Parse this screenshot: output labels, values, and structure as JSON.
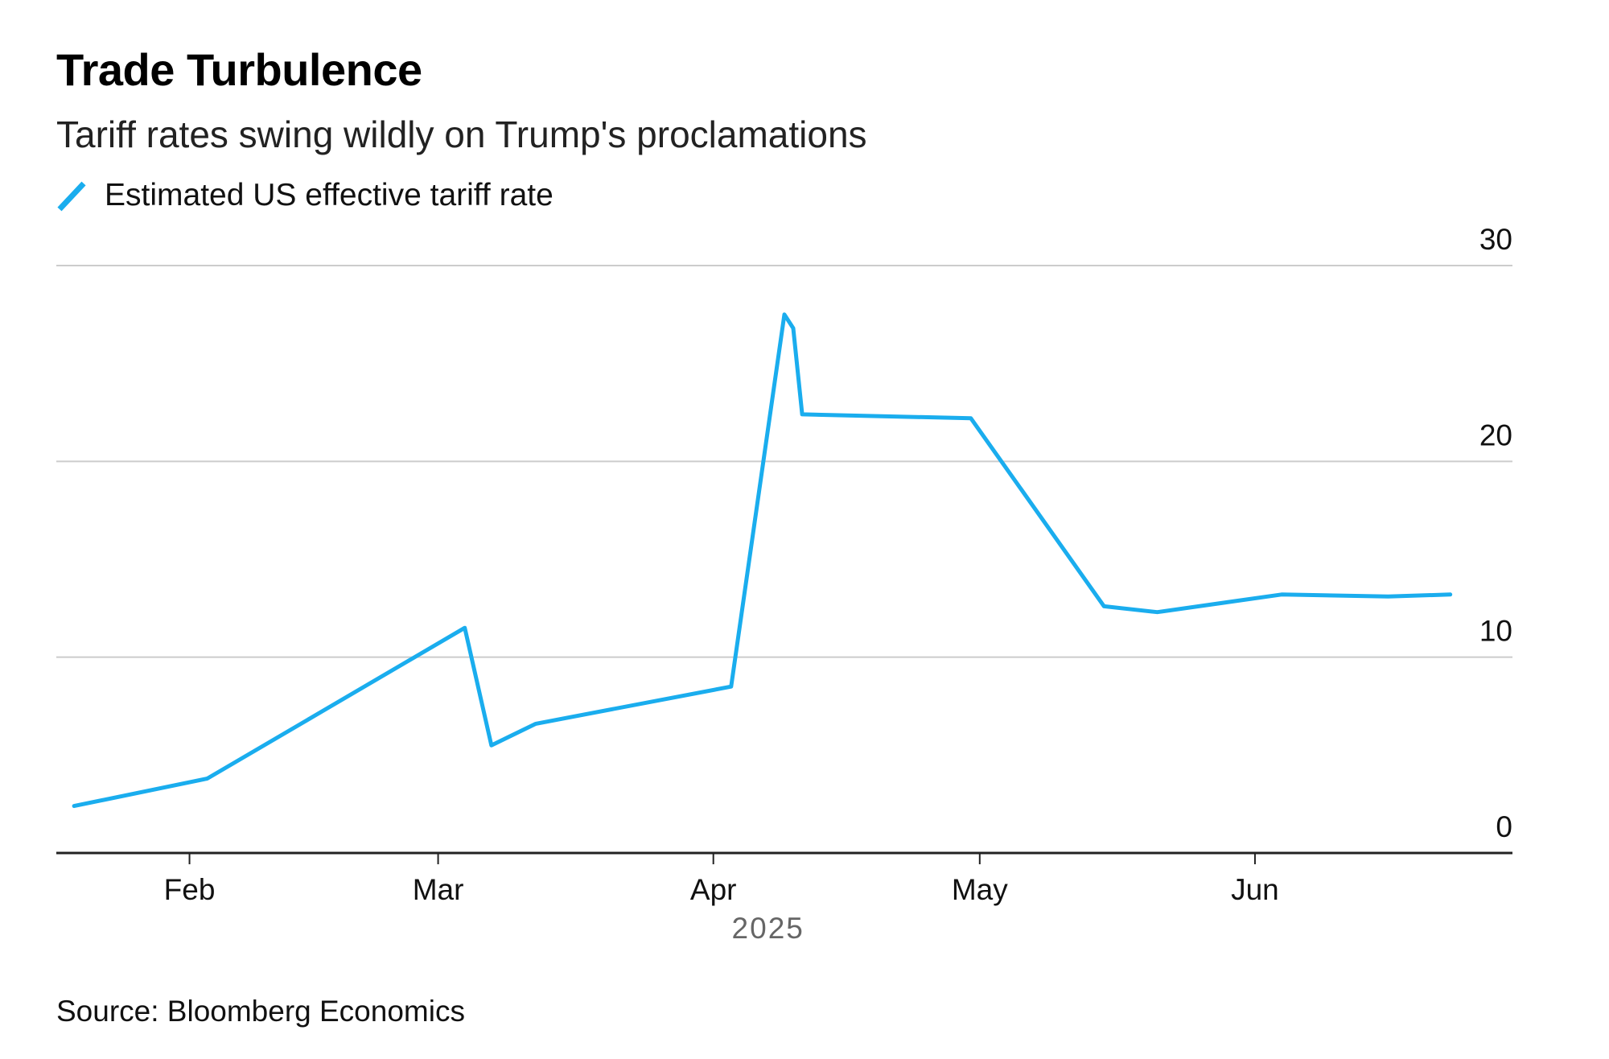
{
  "header": {
    "title": "Trade Turbulence",
    "subtitle": "Tariff rates swing wildly on Trump's proclamations"
  },
  "legend": {
    "label": "Estimated US effective tariff rate",
    "icon": "diagonal-line-swatch"
  },
  "footer": {
    "source": "Source: Bloomberg Economics"
  },
  "colors": {
    "series": "#1aadee",
    "grid": "#cccccc",
    "axis": "#222222"
  },
  "chart_data": {
    "type": "line",
    "title": "Trade Turbulence",
    "subtitle": "Tariff rates swing wildly on Trump's proclamations",
    "xlabel": "2025",
    "ylabel": "",
    "ylim": [
      0,
      30
    ],
    "yticks": [
      "0",
      "10",
      "20",
      "30"
    ],
    "yaxis_position": "right",
    "xlim": [
      "2025-01-17",
      "2025-06-30"
    ],
    "xticks": [
      {
        "label": "Feb",
        "date": "2025-02-01"
      },
      {
        "label": "Mar",
        "date": "2025-03-01"
      },
      {
        "label": "Apr",
        "date": "2025-04-01"
      },
      {
        "label": "May",
        "date": "2025-05-01"
      },
      {
        "label": "Jun",
        "date": "2025-06-01"
      }
    ],
    "grid": true,
    "legend_position": "top-left",
    "series": [
      {
        "name": "Estimated US effective tariff rate",
        "points": [
          {
            "x": "2025-01-19",
            "y": 2.4
          },
          {
            "x": "2025-02-03",
            "y": 3.8
          },
          {
            "x": "2025-03-04",
            "y": 11.5
          },
          {
            "x": "2025-03-07",
            "y": 5.5
          },
          {
            "x": "2025-03-12",
            "y": 6.6
          },
          {
            "x": "2025-04-03",
            "y": 8.5
          },
          {
            "x": "2025-04-09",
            "y": 27.5
          },
          {
            "x": "2025-04-10",
            "y": 26.8
          },
          {
            "x": "2025-04-11",
            "y": 22.4
          },
          {
            "x": "2025-04-30",
            "y": 22.2
          },
          {
            "x": "2025-05-15",
            "y": 12.6
          },
          {
            "x": "2025-05-21",
            "y": 12.3
          },
          {
            "x": "2025-06-04",
            "y": 13.2
          },
          {
            "x": "2025-06-16",
            "y": 13.1
          },
          {
            "x": "2025-06-23",
            "y": 13.2
          }
        ]
      }
    ]
  }
}
